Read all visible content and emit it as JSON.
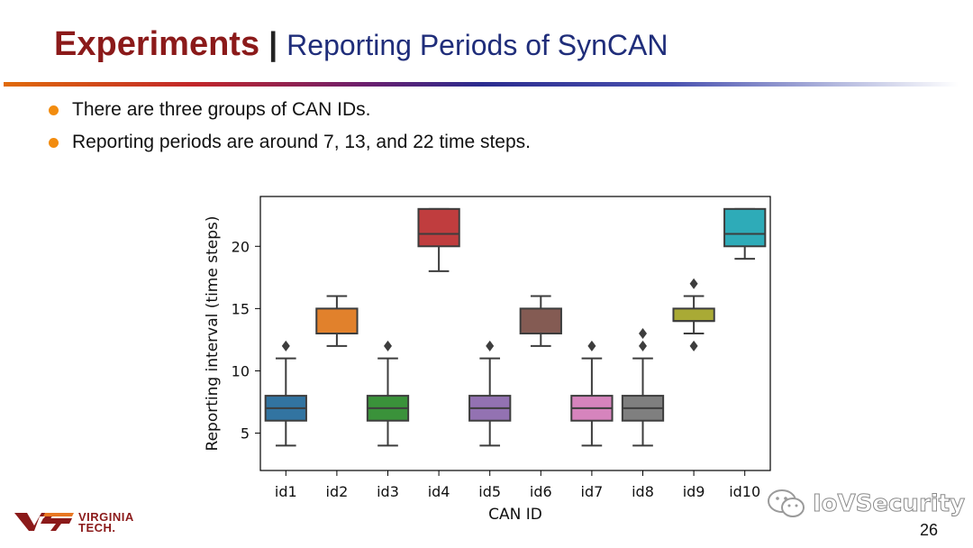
{
  "header": {
    "title": "Experiments",
    "separator": "|",
    "subtitle": "Reporting Periods of SynCAN"
  },
  "bullets": [
    "There are three groups of CAN IDs.",
    "Reporting periods are around 7, 13, and 22 time steps."
  ],
  "footer": {
    "logo_text_line1": "VIRGINIA",
    "logo_text_line2": "TECH.",
    "watermark": "IoVSecurity",
    "page_number": "26"
  },
  "colors": {
    "title": "#8b1a1a",
    "subtitle": "#1f2d7a",
    "bullet": "#f28c0f"
  },
  "chart_data": {
    "type": "boxplot",
    "xlabel": "CAN ID",
    "ylabel": "Reporting interval (time steps)",
    "categories": [
      "id1",
      "id2",
      "id3",
      "id4",
      "id5",
      "id6",
      "id7",
      "id8",
      "id9",
      "id10"
    ],
    "ylim": [
      2.0,
      24.0
    ],
    "yticks": [
      5,
      10,
      15,
      20
    ],
    "grid": false,
    "boxes": [
      {
        "name": "id1",
        "color": "#3274a1",
        "whislo": 4,
        "q1": 6,
        "med": 7,
        "q3": 8,
        "whishi": 11,
        "fliers": [
          12
        ]
      },
      {
        "name": "id2",
        "color": "#e1812c",
        "whislo": 12,
        "q1": 13,
        "med": 13,
        "q3": 15,
        "whishi": 16,
        "fliers": []
      },
      {
        "name": "id3",
        "color": "#3a923a",
        "whislo": 4,
        "q1": 6,
        "med": 7,
        "q3": 8,
        "whishi": 11,
        "fliers": [
          12
        ]
      },
      {
        "name": "id4",
        "color": "#c03d3e",
        "whislo": 18,
        "q1": 20,
        "med": 21,
        "q3": 23,
        "whishi": 23,
        "fliers": []
      },
      {
        "name": "id5",
        "color": "#9372b2",
        "whislo": 4,
        "q1": 6,
        "med": 7,
        "q3": 8,
        "whishi": 11,
        "fliers": [
          12
        ]
      },
      {
        "name": "id6",
        "color": "#845b53",
        "whislo": 12,
        "q1": 13,
        "med": 13,
        "q3": 15,
        "whishi": 16,
        "fliers": []
      },
      {
        "name": "id7",
        "color": "#d684bd",
        "whislo": 4,
        "q1": 6,
        "med": 7,
        "q3": 8,
        "whishi": 11,
        "fliers": [
          12
        ]
      },
      {
        "name": "id8",
        "color": "#7f7f7f",
        "whislo": 4,
        "q1": 6,
        "med": 7,
        "q3": 8,
        "whishi": 11,
        "fliers": [
          12,
          13
        ]
      },
      {
        "name": "id9",
        "color": "#a9aa35",
        "whislo": 13,
        "q1": 14,
        "med": 14,
        "q3": 15,
        "whishi": 16,
        "fliers": [
          12,
          17
        ]
      },
      {
        "name": "id10",
        "color": "#2eabb8",
        "whislo": 19,
        "q1": 20,
        "med": 21,
        "q3": 23,
        "whishi": 23,
        "fliers": []
      }
    ]
  }
}
